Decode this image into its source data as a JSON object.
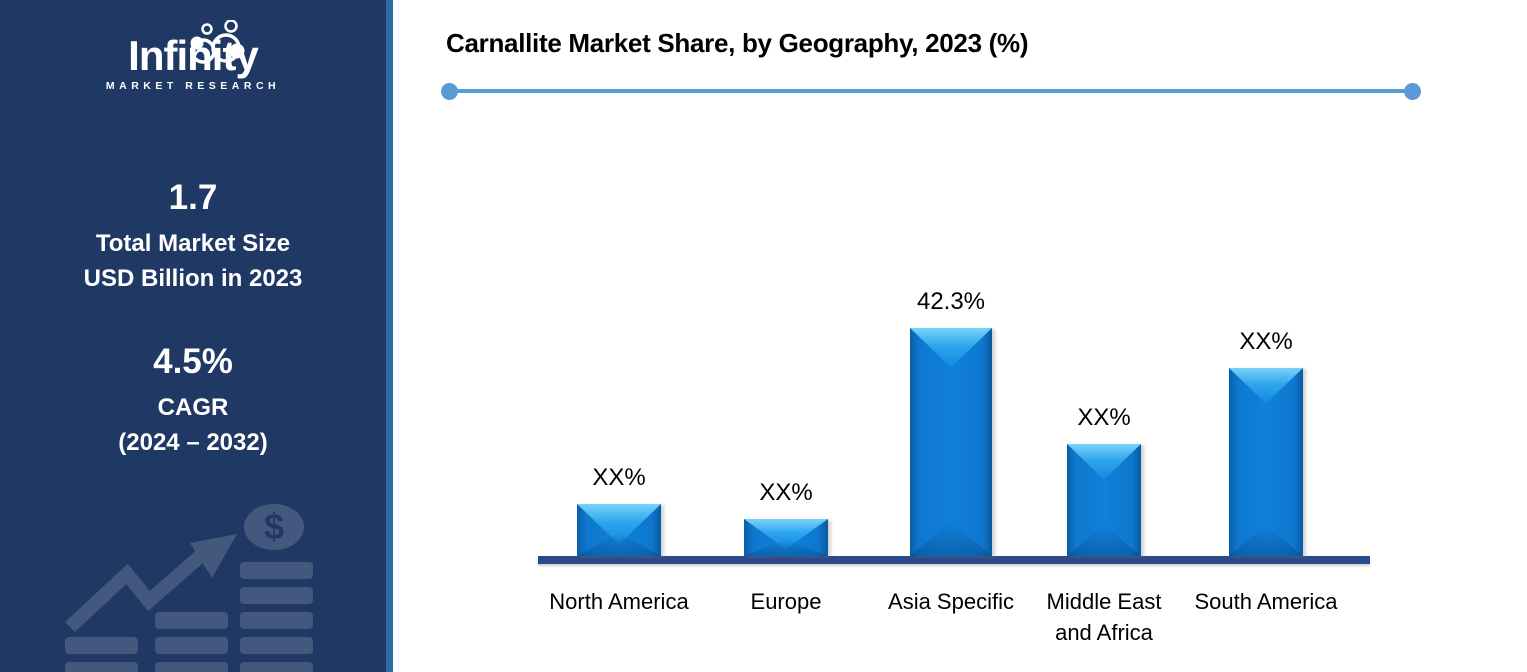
{
  "sidebar": {
    "logo": {
      "name": "Infinity",
      "subtitle": "MARKET RESEARCH"
    },
    "stats": [
      {
        "value": "1.7",
        "label_lines": [
          "Total Market Size",
          "USD Billion in 2023"
        ]
      },
      {
        "value": "4.5%",
        "label_lines": [
          "CAGR",
          "(2024 – 2032)"
        ]
      }
    ],
    "graphic_icon": "growth-bars-arrow-dollar-coin",
    "colors": {
      "background": "#1F3864",
      "accent_stripe": "#2E6DA4",
      "graphic": "#44587E",
      "text": "#FFFFFF"
    }
  },
  "header": {
    "divider_color": "#5B9BD5"
  },
  "chart_data": {
    "type": "bar",
    "title": "Carnallite Market Share, by Geography, 2023 (%)",
    "categories": [
      "North America",
      "Europe",
      "Asia Specific",
      "Middle East and Africa",
      "South America"
    ],
    "category_display_lines": [
      [
        "North America"
      ],
      [
        "Europe"
      ],
      [
        "Asia Specific"
      ],
      [
        "Middle East",
        "and Africa"
      ],
      [
        "South America"
      ]
    ],
    "data_labels": [
      "XX%",
      "XX%",
      "42.3%",
      "XX%",
      "XX%"
    ],
    "values_pct_est": [
      9.6,
      6.9,
      42.3,
      20.8,
      34.9
    ],
    "note": "Only the Asia Specific bar is labeled with a value (42.3%); all other data labels are masked as XX%. values_pct_est are estimated from relative bar heights.",
    "xlabel": "",
    "ylabel": "",
    "ylim": [
      0,
      50
    ],
    "grid": false,
    "legend": false,
    "bar_color": "#0F7AD2",
    "bar_highlight_color": "#54C0F4",
    "axis_color": "#2B4A8C",
    "label_color": "#000000"
  }
}
